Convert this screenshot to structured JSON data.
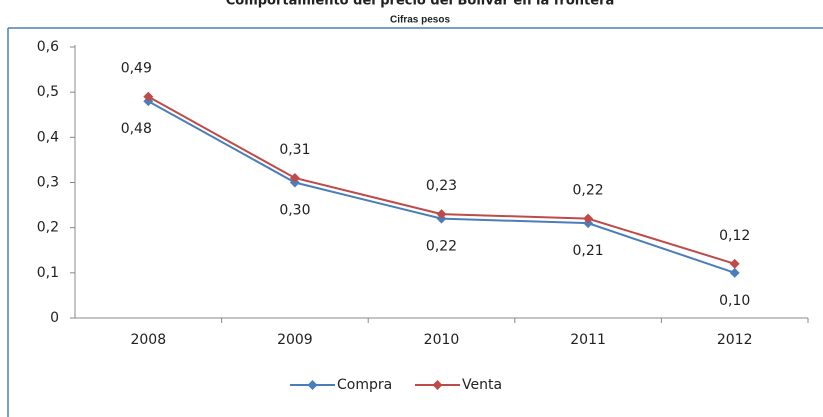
{
  "chart_data": {
    "type": "line",
    "title": "Comportamiento del precio del Bolívar en la frontera",
    "subtitle": "Cifras pesos",
    "categories": [
      "2008",
      "2009",
      "2010",
      "2011",
      "2012"
    ],
    "series": [
      {
        "name": "Compra",
        "color": "#4a7ebb",
        "values": [
          0.48,
          0.3,
          0.22,
          0.21,
          0.1
        ],
        "value_labels": [
          "0,48",
          "0,30",
          "0,22",
          "0,21",
          "0,10"
        ]
      },
      {
        "name": "Venta",
        "color": "#be4b48",
        "values": [
          0.49,
          0.31,
          0.23,
          0.22,
          0.12
        ],
        "value_labels": [
          "0,49",
          "0,31",
          "0,23",
          "0,22",
          "0,12"
        ]
      }
    ],
    "ylim": [
      0,
      0.6
    ],
    "yticks": [
      0,
      {
        "value": 0.1,
        "label": "0,1"
      },
      {
        "value": 0.2,
        "label": "0,2"
      },
      {
        "value": 0.3,
        "label": "0,3"
      },
      {
        "value": 0.4,
        "label": "0,4"
      },
      {
        "value": 0.5,
        "label": "0,5"
      },
      {
        "value": 0.6,
        "label": "0,6"
      }
    ],
    "grid": false,
    "legend": "bottom"
  }
}
